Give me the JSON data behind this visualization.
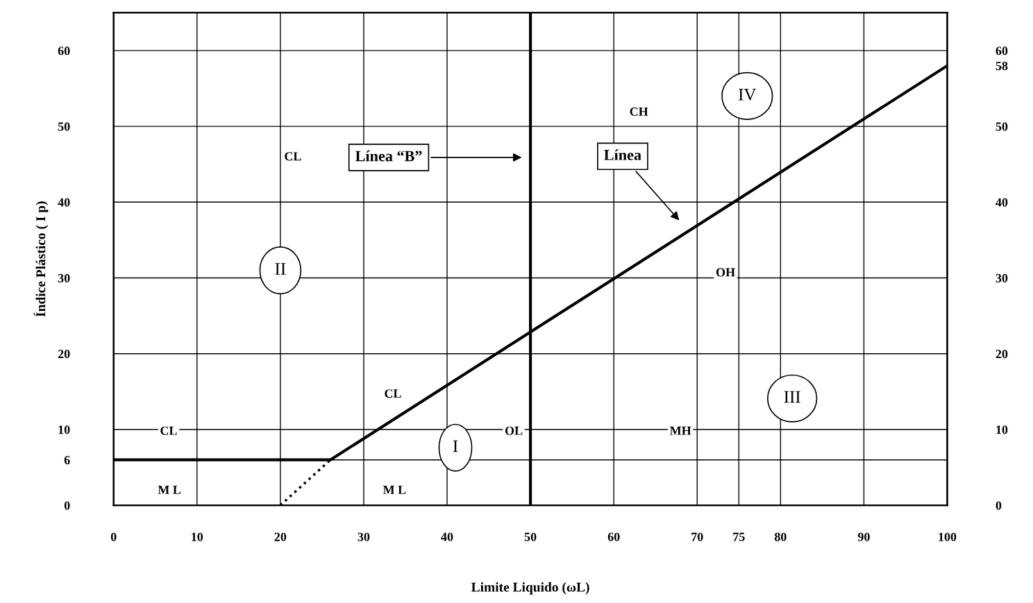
{
  "chart_data": {
    "type": "line",
    "xlabel": "Limite Liquido (ωL)",
    "ylabel": "Índice Plástico ( I p)",
    "xlim": [
      0,
      100
    ],
    "ylim": [
      0,
      65
    ],
    "y2lim": [
      0,
      65
    ],
    "xticks": [
      0,
      10,
      20,
      30,
      40,
      50,
      60,
      70,
      75,
      80,
      90,
      100
    ],
    "yticks": [
      0,
      6,
      10,
      20,
      30,
      40,
      50,
      60
    ],
    "y2ticks": [
      0,
      10,
      20,
      30,
      40,
      50,
      58,
      60
    ],
    "grid": true,
    "marker": "none",
    "series": [
      {
        "color": "#000000",
        "x": [
          0,
          26,
          100
        ],
        "values": [
          6,
          6,
          58
        ],
        "line_style": "solid"
      },
      {
        "color": "#000000",
        "x": [
          20,
          26
        ],
        "values": [
          0,
          6
        ],
        "line_style": "dotted"
      }
    ],
    "ref_lines": [
      {
        "axis": "x",
        "value": 50,
        "color": "#000000",
        "line_style": "solid"
      }
    ],
    "annotations": [
      "CL",
      "M L",
      "CL",
      "II",
      "CL",
      "M L",
      "I",
      "OL",
      "MH",
      "OH",
      "III",
      "CH",
      "IV",
      "Línea “B”",
      "Línea"
    ]
  }
}
